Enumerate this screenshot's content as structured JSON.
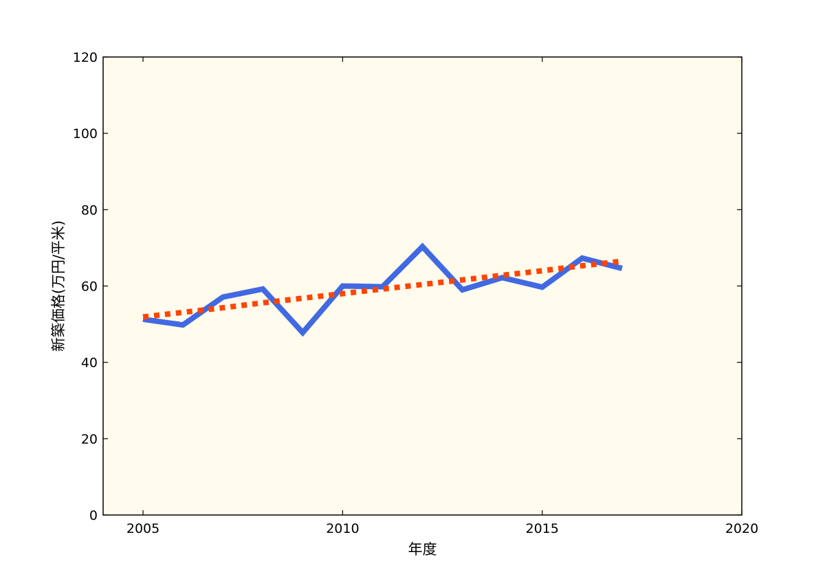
{
  "chart_data": {
    "type": "line",
    "title": "",
    "xlabel": "年度",
    "ylabel": "新築価格(万円/平米)",
    "xlim": [
      2004,
      2020
    ],
    "ylim": [
      0,
      120
    ],
    "xticks": [
      2005,
      2010,
      2015,
      2020
    ],
    "yticks": [
      0,
      20,
      40,
      60,
      80,
      100,
      120
    ],
    "grid": false,
    "legend": "none",
    "background_color": "#fffbed",
    "x": [
      2005,
      2006,
      2007,
      2008,
      2009,
      2010,
      2011,
      2012,
      2013,
      2014,
      2015,
      2016,
      2017
    ],
    "series": [
      {
        "style": "solid",
        "color": "#4169e1",
        "values": [
          51.3,
          49.8,
          57.1,
          59.2,
          47.8,
          60.0,
          59.8,
          70.3,
          59.0,
          62.2,
          59.7,
          67.3,
          64.6
        ]
      },
      {
        "style": "dotted",
        "color": "#ff4500",
        "values": [
          51.9,
          53.1,
          54.3,
          55.6,
          56.8,
          58.0,
          59.2,
          60.4,
          61.6,
          62.8,
          64.0,
          65.3,
          66.5
        ]
      }
    ]
  }
}
